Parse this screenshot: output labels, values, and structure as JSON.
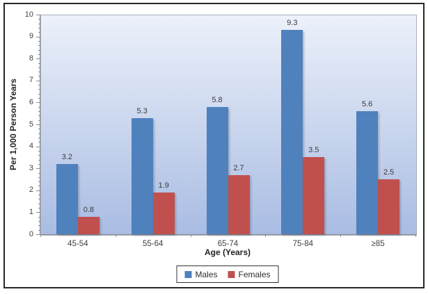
{
  "chart_data": {
    "type": "bar",
    "title": "",
    "categories": [
      "45-54",
      "55-64",
      "65-74",
      "75-84",
      "≥85"
    ],
    "series": [
      {
        "name": "Males",
        "color": "#4F81BD",
        "values": [
          3.2,
          5.3,
          5.8,
          9.3,
          5.6
        ]
      },
      {
        "name": "Females",
        "color": "#C0504D",
        "values": [
          0.8,
          1.9,
          2.7,
          3.5,
          2.5
        ]
      }
    ],
    "xlabel": "Age (Years)",
    "ylabel": "Per 1,000 Person Years",
    "ylim": [
      0,
      10
    ],
    "y_major_step": 1,
    "y_minor_step": 0.2,
    "grid": false,
    "data_labels": true,
    "legend_position": "bottom",
    "colors": {
      "plot_bg_top": "#ECF1FA",
      "plot_bg_bottom": "#A9BCE3",
      "plot_border": "#A6AFBC",
      "axis": "#8C8C8C",
      "text": "#3F3F3F",
      "outer_border": "#262626"
    }
  }
}
